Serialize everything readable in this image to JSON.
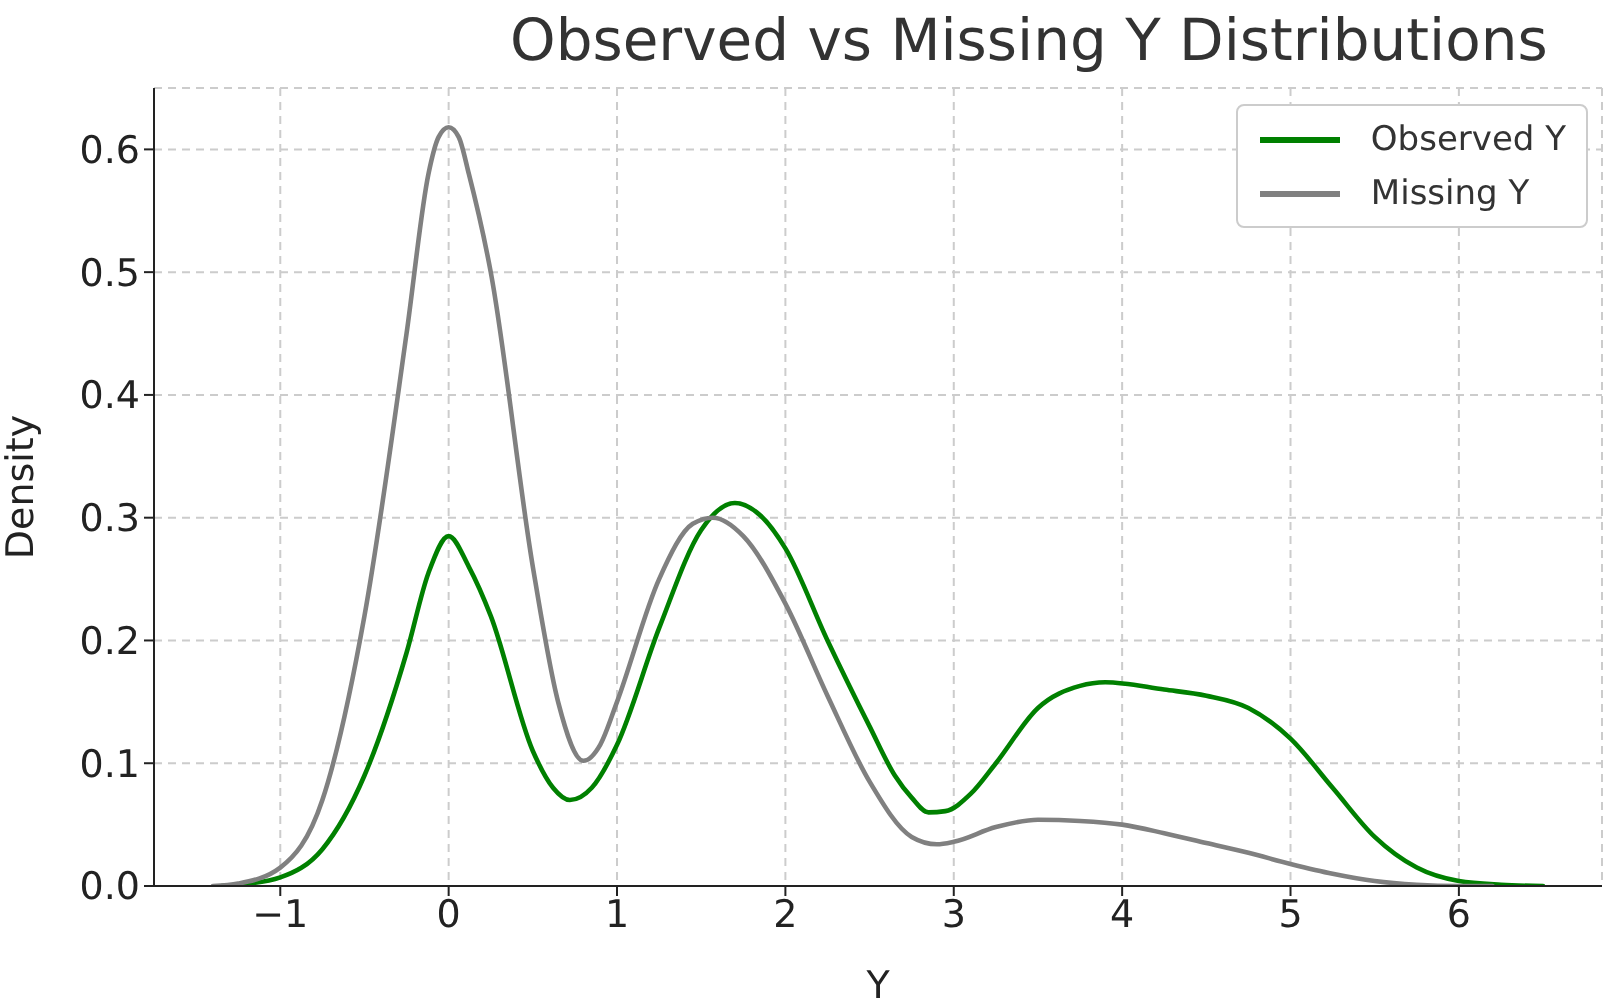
{
  "chart_data": {
    "type": "line",
    "title": "Observed vs Missing Y Distributions",
    "xlabel": "Y",
    "ylabel": "Density",
    "xlim": [
      -1.75,
      6.85
    ],
    "xticks": [
      {
        "value": -1,
        "label": "−1"
      },
      0,
      1,
      2,
      3,
      4,
      5,
      6
    ],
    "ylim": [
      0,
      0.65
    ],
    "yticks": [
      {
        "value": 0,
        "label": "0.0"
      },
      0.1,
      0.2,
      0.3,
      0.4,
      0.5,
      0.6
    ],
    "grid": true,
    "legend": "top right",
    "line_style": "solid",
    "marker": "none",
    "series": [
      {
        "name": "Observed Y",
        "color": "#008000",
        "x": [
          -1.35,
          -1.25,
          -1,
          -0.75,
          -0.5,
          -0.25,
          -0.12,
          0,
          0.12,
          0.25,
          0.5,
          0.62,
          0.72,
          0.85,
          1,
          1.25,
          1.5,
          1.7,
          1.85,
          2,
          2.25,
          2.5,
          2.65,
          2.75,
          2.85,
          2.95,
          3.1,
          3.25,
          3.5,
          3.75,
          3.9,
          4.25,
          4.5,
          4.75,
          5,
          5.25,
          5.5,
          5.75,
          6,
          6.25,
          6.5
        ],
        "values": [
          0,
          0.001,
          0.007,
          0.03,
          0.09,
          0.19,
          0.255,
          0.285,
          0.26,
          0.22,
          0.11,
          0.08,
          0.07,
          0.08,
          0.115,
          0.21,
          0.29,
          0.312,
          0.302,
          0.275,
          0.2,
          0.13,
          0.09,
          0.072,
          0.06,
          0.061,
          0.075,
          0.1,
          0.145,
          0.163,
          0.166,
          0.16,
          0.155,
          0.145,
          0.12,
          0.08,
          0.04,
          0.015,
          0.004,
          0.001,
          0
        ]
      },
      {
        "name": "Missing Y",
        "color": "#808080",
        "x": [
          -1.4,
          -1.25,
          -1,
          -0.75,
          -0.5,
          -0.25,
          -0.12,
          -0.06,
          0,
          0.06,
          0.12,
          0.25,
          0.5,
          0.65,
          0.8,
          0.9,
          1,
          1.25,
          1.45,
          1.57,
          1.75,
          2,
          2.25,
          2.5,
          2.75,
          2.9,
          3,
          3.25,
          3.5,
          3.75,
          4,
          4.25,
          4.5,
          4.75,
          5,
          5.25,
          5.5,
          5.75,
          6,
          6.2
        ],
        "values": [
          0,
          0.002,
          0.015,
          0.07,
          0.22,
          0.45,
          0.58,
          0.61,
          0.618,
          0.61,
          0.58,
          0.5,
          0.26,
          0.15,
          0.102,
          0.115,
          0.15,
          0.25,
          0.295,
          0.3,
          0.285,
          0.23,
          0.155,
          0.085,
          0.04,
          0.034,
          0.036,
          0.048,
          0.054,
          0.053,
          0.05,
          0.043,
          0.035,
          0.027,
          0.018,
          0.01,
          0.004,
          0.001,
          0,
          0
        ]
      }
    ]
  }
}
